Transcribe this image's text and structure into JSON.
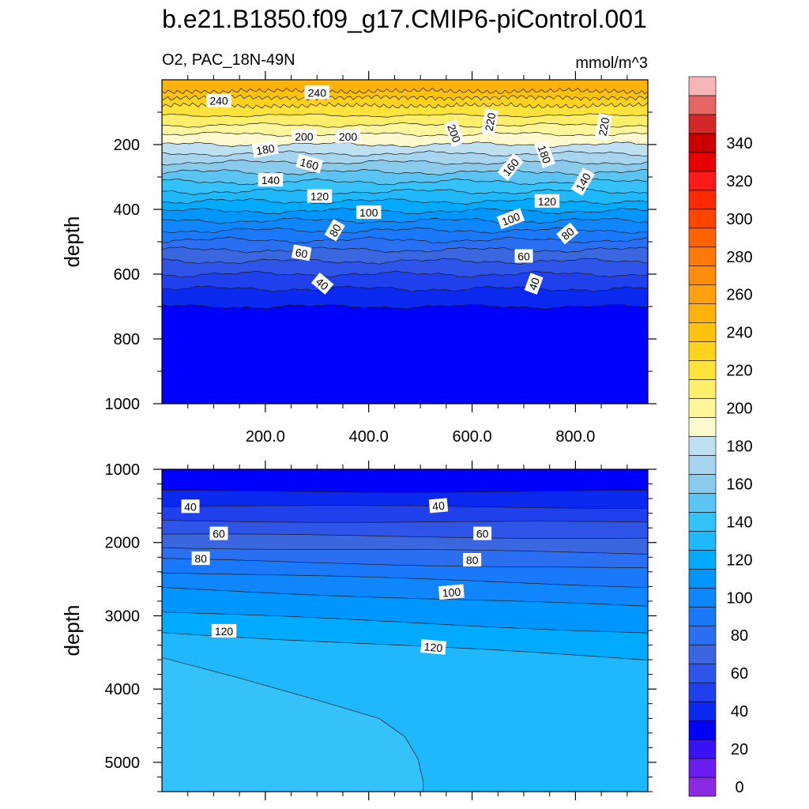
{
  "title": "b.e21.B1850.f09_g17.CMIP6-piControl.001",
  "subtitle_left": "O2, PAC_18N-49N",
  "subtitle_right": "mmol/m^3",
  "chart_data": [
    {
      "type": "heatmap",
      "panel": "upper",
      "variable": "O2",
      "region": "PAC_18N-49N",
      "units": "mmol/m^3",
      "xlabel": "",
      "ylabel": "depth",
      "xlim": [
        0,
        940
      ],
      "ylim": [
        1000,
        0
      ],
      "x_ticks": [
        "200.0",
        "400.0",
        "600.0",
        "800.0"
      ],
      "y_ticks": [
        "200",
        "400",
        "600",
        "800",
        "1000"
      ],
      "contour_interval": 10,
      "isolines": [
        {
          "value": 240,
          "depth": 35,
          "amp": 5
        },
        {
          "value": 230,
          "depth": 55,
          "amp": 4
        },
        {
          "value": 220,
          "depth": 80,
          "amp": 5
        },
        {
          "value": 210,
          "depth": 110,
          "amp": 6
        },
        {
          "value": 200,
          "depth": 140,
          "amp": 8
        },
        {
          "value": 190,
          "depth": 168,
          "amp": 8
        },
        {
          "value": 180,
          "depth": 200,
          "amp": 9
        },
        {
          "value": 170,
          "depth": 228,
          "amp": 9
        },
        {
          "value": 160,
          "depth": 255,
          "amp": 9
        },
        {
          "value": 150,
          "depth": 285,
          "amp": 10
        },
        {
          "value": 140,
          "depth": 315,
          "amp": 10
        },
        {
          "value": 130,
          "depth": 345,
          "amp": 10
        },
        {
          "value": 120,
          "depth": 375,
          "amp": 10
        },
        {
          "value": 110,
          "depth": 405,
          "amp": 10
        },
        {
          "value": 100,
          "depth": 435,
          "amp": 10
        },
        {
          "value": 90,
          "depth": 465,
          "amp": 10
        },
        {
          "value": 80,
          "depth": 495,
          "amp": 10
        },
        {
          "value": 70,
          "depth": 525,
          "amp": 10
        },
        {
          "value": 60,
          "depth": 560,
          "amp": 10
        },
        {
          "value": 50,
          "depth": 600,
          "amp": 10
        },
        {
          "value": 40,
          "depth": 645,
          "amp": 10
        },
        {
          "value": 30,
          "depth": 700,
          "amp": 8
        }
      ],
      "labels": [
        {
          "text": "240",
          "x": 110,
          "depth": 65,
          "rot": 0
        },
        {
          "text": "240",
          "x": 300,
          "depth": 40,
          "rot": 0
        },
        {
          "text": "200",
          "x": 275,
          "depth": 175,
          "rot": 0
        },
        {
          "text": "200",
          "x": 360,
          "depth": 175,
          "rot": 0
        },
        {
          "text": "180",
          "x": 200,
          "depth": 215,
          "rot": -10
        },
        {
          "text": "160",
          "x": 285,
          "depth": 260,
          "rot": 15
        },
        {
          "text": "140",
          "x": 210,
          "depth": 310,
          "rot": 0
        },
        {
          "text": "120",
          "x": 305,
          "depth": 360,
          "rot": 0
        },
        {
          "text": "100",
          "x": 400,
          "depth": 410,
          "rot": 0
        },
        {
          "text": "80",
          "x": 335,
          "depth": 465,
          "rot": -60
        },
        {
          "text": "60",
          "x": 270,
          "depth": 535,
          "rot": 10
        },
        {
          "text": "40",
          "x": 310,
          "depth": 630,
          "rot": 40
        },
        {
          "text": "200",
          "x": 565,
          "depth": 165,
          "rot": 70
        },
        {
          "text": "220",
          "x": 635,
          "depth": 130,
          "rot": -80
        },
        {
          "text": "160",
          "x": 675,
          "depth": 270,
          "rot": -50
        },
        {
          "text": "180",
          "x": 740,
          "depth": 230,
          "rot": 70
        },
        {
          "text": "140",
          "x": 815,
          "depth": 315,
          "rot": -60
        },
        {
          "text": "220",
          "x": 855,
          "depth": 145,
          "rot": -80
        },
        {
          "text": "100",
          "x": 675,
          "depth": 430,
          "rot": -20
        },
        {
          "text": "120",
          "x": 745,
          "depth": 375,
          "rot": 0
        },
        {
          "text": "80",
          "x": 785,
          "depth": 475,
          "rot": -40
        },
        {
          "text": "60",
          "x": 700,
          "depth": 545,
          "rot": 0
        },
        {
          "text": "40",
          "x": 720,
          "depth": 630,
          "rot": -70
        }
      ]
    },
    {
      "type": "heatmap",
      "panel": "lower",
      "variable": "O2",
      "units": "mmol/m^3",
      "xlabel": "",
      "ylabel": "depth",
      "xlim": [
        0,
        940
      ],
      "ylim": [
        5400,
        1000
      ],
      "y_ticks": [
        "1000",
        "2000",
        "3000",
        "4000",
        "5000"
      ],
      "contour_interval": 10,
      "isolines": [
        {
          "value": 30,
          "d_left": 1300,
          "d_right": 1300
        },
        {
          "value": 40,
          "d_left": 1500,
          "d_right": 1520
        },
        {
          "value": 50,
          "d_left": 1700,
          "d_right": 1730
        },
        {
          "value": 60,
          "d_left": 1890,
          "d_right": 1940
        },
        {
          "value": 70,
          "d_left": 2060,
          "d_right": 2150
        },
        {
          "value": 80,
          "d_left": 2230,
          "d_right": 2360
        },
        {
          "value": 90,
          "d_left": 2400,
          "d_right": 2600
        },
        {
          "value": 100,
          "d_left": 2620,
          "d_right": 2880
        },
        {
          "value": 110,
          "d_left": 2950,
          "d_right": 3230
        },
        {
          "value": 120,
          "d_left": 3220,
          "d_right": 3600
        }
      ],
      "region_130_boundary": [
        [
          0,
          3570
        ],
        [
          150,
          3850
        ],
        [
          300,
          4150
        ],
        [
          420,
          4400
        ],
        [
          470,
          4650
        ],
        [
          495,
          4950
        ],
        [
          505,
          5250
        ],
        [
          505,
          5400
        ]
      ],
      "labels": [
        {
          "text": "40",
          "x": 55,
          "depth": 1510,
          "rot": 0
        },
        {
          "text": "60",
          "x": 110,
          "depth": 1880,
          "rot": 0
        },
        {
          "text": "80",
          "x": 75,
          "depth": 2220,
          "rot": 0
        },
        {
          "text": "120",
          "x": 120,
          "depth": 3210,
          "rot": 0
        },
        {
          "text": "40",
          "x": 535,
          "depth": 1500,
          "rot": -5
        },
        {
          "text": "60",
          "x": 620,
          "depth": 1880,
          "rot": 0
        },
        {
          "text": "80",
          "x": 600,
          "depth": 2240,
          "rot": 0
        },
        {
          "text": "100",
          "x": 560,
          "depth": 2680,
          "rot": -5
        },
        {
          "text": "120",
          "x": 525,
          "depth": 3430,
          "rot": 5
        }
      ]
    }
  ],
  "colorbar": {
    "labels": [
      "0",
      "20",
      "40",
      "60",
      "80",
      "100",
      "120",
      "140",
      "160",
      "180",
      "200",
      "220",
      "240",
      "260",
      "280",
      "300",
      "320",
      "340"
    ],
    "colors": [
      "#8a2be2",
      "#6a1ef0",
      "#3a12f5",
      "#0000ff",
      "#0a28f0",
      "#2040ee",
      "#2f55e8",
      "#3a66e0",
      "#2a6ef2",
      "#1a78fa",
      "#0f86fc",
      "#0096ff",
      "#00aaff",
      "#20b8fc",
      "#35c2fa",
      "#5cc4f2",
      "#8acbec",
      "#a7d4ee",
      "#bfe0f0",
      "#fffacd",
      "#fff59a",
      "#ffee6a",
      "#ffe33a",
      "#ffd21f",
      "#ffc20f",
      "#ffb30a",
      "#ffa00f",
      "#ff8c0a",
      "#ff780a",
      "#ff6200",
      "#ff4500",
      "#ff2a00",
      "#ff1a1a",
      "#e60000",
      "#c80000",
      "#d22828",
      "#e66666",
      "#f7b6b6"
    ]
  }
}
